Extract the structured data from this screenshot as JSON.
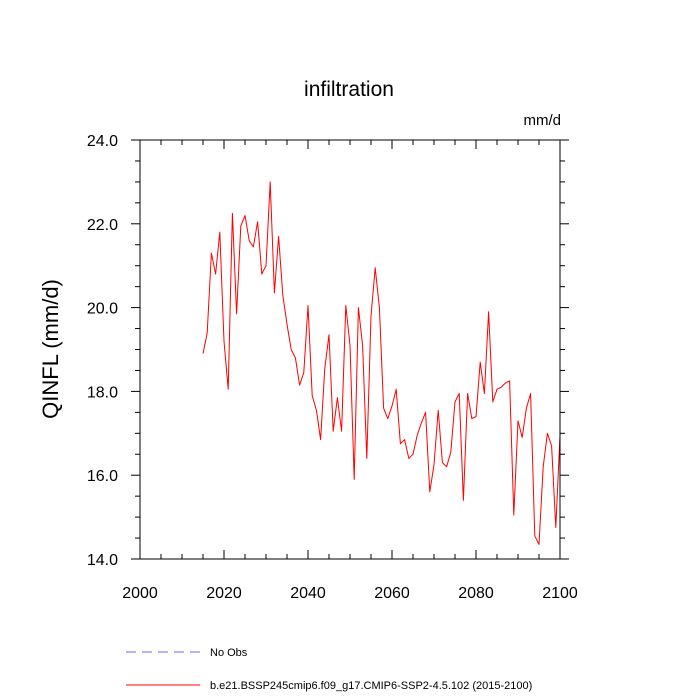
{
  "chart_data": {
    "type": "line",
    "title": "infiltration",
    "units": "mm/d",
    "xlabel": "",
    "ylabel": "QINFL  (mm/d)",
    "xlim": [
      2000,
      2100
    ],
    "ylim": [
      14.0,
      24.0
    ],
    "x_ticks": [
      2000,
      2020,
      2040,
      2060,
      2080,
      2100
    ],
    "x_tick_labels": [
      "2000",
      "2020",
      "2040",
      "2060",
      "2080",
      "2100"
    ],
    "y_ticks": [
      14.0,
      16.0,
      18.0,
      20.0,
      22.0,
      24.0
    ],
    "y_tick_labels": [
      "14.0",
      "16.0",
      "18.0",
      "20.0",
      "22.0",
      "24.0"
    ],
    "series": [
      {
        "name": "b.e21.BSSP245cmip6.f09_g17.CMIP6-SSP2-4.5.102 (2015-2100)",
        "color": "#ff0000",
        "x": [
          2015,
          2016,
          2017,
          2018,
          2019,
          2020,
          2021,
          2022,
          2023,
          2024,
          2025,
          2026,
          2027,
          2028,
          2029,
          2030,
          2031,
          2032,
          2033,
          2034,
          2035,
          2036,
          2037,
          2038,
          2039,
          2040,
          2041,
          2042,
          2043,
          2044,
          2045,
          2046,
          2047,
          2048,
          2049,
          2050,
          2051,
          2052,
          2053,
          2054,
          2055,
          2056,
          2057,
          2058,
          2059,
          2060,
          2061,
          2062,
          2063,
          2064,
          2065,
          2066,
          2067,
          2068,
          2069,
          2070,
          2071,
          2072,
          2073,
          2074,
          2075,
          2076,
          2077,
          2078,
          2079,
          2080,
          2081,
          2082,
          2083,
          2084,
          2085,
          2086,
          2087,
          2088,
          2089,
          2090,
          2091,
          2092,
          2093,
          2094,
          2095,
          2096,
          2097,
          2098,
          2099,
          2100
        ],
        "values": [
          18.9,
          19.4,
          21.3,
          20.8,
          21.8,
          19.2,
          18.05,
          22.25,
          19.85,
          21.95,
          22.2,
          21.6,
          21.45,
          22.05,
          20.8,
          21.0,
          23.0,
          20.35,
          21.7,
          20.3,
          19.6,
          19.0,
          18.8,
          18.15,
          18.45,
          20.05,
          17.9,
          17.55,
          16.85,
          18.55,
          19.35,
          17.05,
          17.85,
          17.05,
          20.05,
          19.1,
          15.9,
          20.0,
          19.1,
          16.4,
          19.8,
          20.95,
          20.0,
          17.6,
          17.35,
          17.65,
          18.05,
          16.75,
          16.85,
          16.4,
          16.5,
          16.95,
          17.25,
          17.5,
          15.6,
          16.25,
          17.55,
          16.3,
          16.2,
          16.55,
          17.75,
          17.95,
          15.4,
          17.95,
          17.35,
          17.4,
          18.7,
          17.95,
          19.9,
          17.75,
          18.05,
          18.1,
          18.2,
          18.25,
          15.05,
          17.3,
          16.9,
          17.6,
          17.95,
          14.55,
          14.35,
          16.2,
          17.0,
          16.7,
          14.75,
          16.95
        ]
      }
    ],
    "legend": [
      {
        "label": "No Obs",
        "color": "#6a6aff",
        "style": "dashed"
      },
      {
        "label": "b.e21.BSSP245cmip6.f09_g17.CMIP6-SSP2-4.5.102 (2015-2100)",
        "color": "#ff0000",
        "style": "solid"
      }
    ],
    "legend_position": "bottom-left"
  }
}
